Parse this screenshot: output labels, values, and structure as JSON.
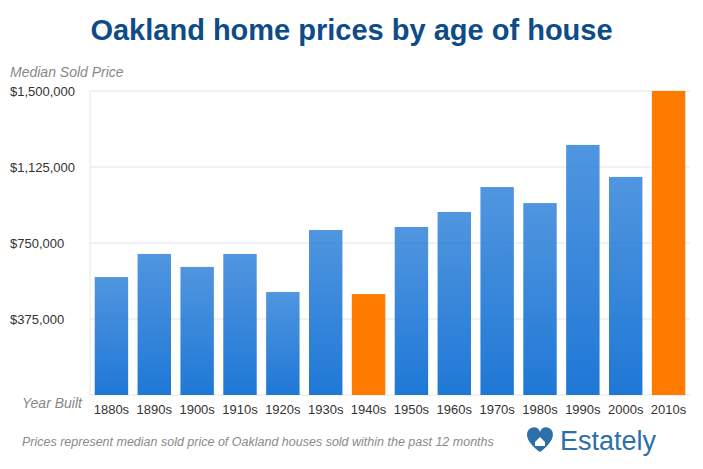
{
  "chart_data": {
    "type": "bar",
    "title": "Oakland home prices by age of house",
    "y_label": "Median Sold Price",
    "x_label": "Year Built",
    "categories": [
      "1880s",
      "1890s",
      "1900s",
      "1910s",
      "1920s",
      "1930s",
      "1940s",
      "1950s",
      "1960s",
      "1970s",
      "1980s",
      "1990s",
      "2000s",
      "2010s"
    ],
    "values": [
      582000,
      696000,
      632000,
      696000,
      508000,
      814000,
      498000,
      829000,
      903000,
      1026000,
      947000,
      1234000,
      1076000,
      1500000
    ],
    "colors": [
      "#1f78d6",
      "#1f78d6",
      "#1f78d6",
      "#1f78d6",
      "#1f78d6",
      "#1f78d6",
      "#ff7b00",
      "#1f78d6",
      "#1f78d6",
      "#1f78d6",
      "#1f78d6",
      "#1f78d6",
      "#1f78d6",
      "#ff7b00"
    ],
    "ylim": [
      0,
      1500000
    ],
    "yticks": [
      {
        "value": 375000,
        "label": "$375,000"
      },
      {
        "value": 750000,
        "label": "$750,000"
      },
      {
        "value": 1125000,
        "label": "$1,125,000"
      },
      {
        "value": 1500000,
        "label": "$1,500,000"
      }
    ],
    "grid": true,
    "footnote": "Prices represent median sold price of Oakland houses sold within the past 12 months",
    "logo": "Estately"
  }
}
